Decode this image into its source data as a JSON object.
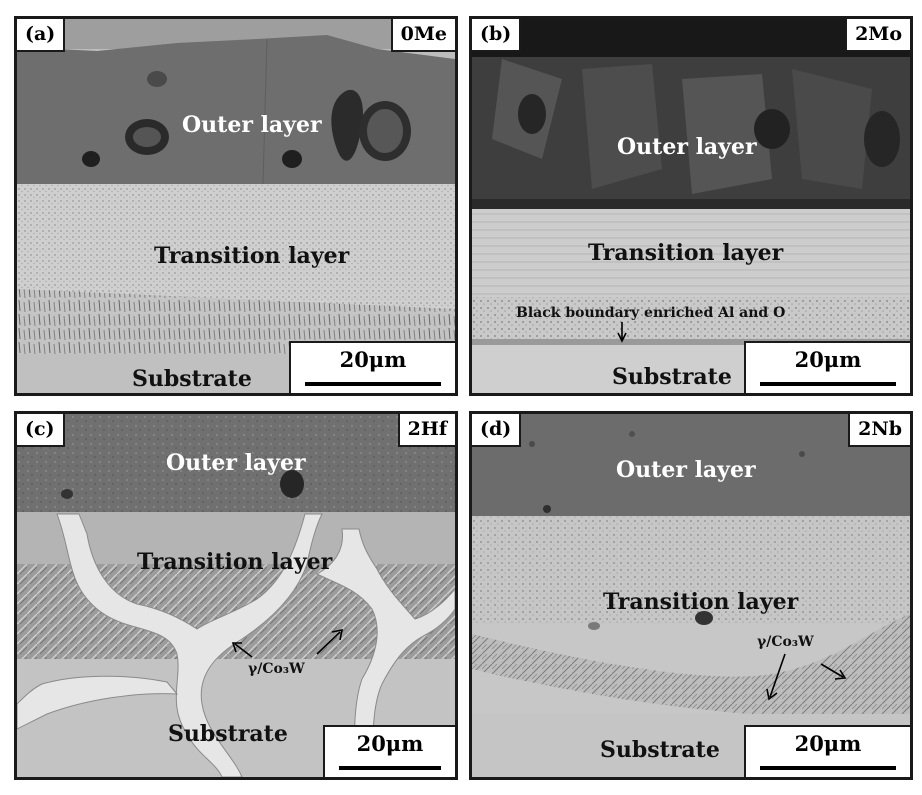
{
  "panels": [
    {
      "tag": "(a)",
      "sample": "0Me",
      "labels": {
        "outer": "Outer layer",
        "transition": "Transition layer",
        "substrate": "Substrate"
      },
      "scale": "20μm"
    },
    {
      "tag": "(b)",
      "sample": "2Mo",
      "labels": {
        "outer": "Outer layer",
        "transition": "Transition layer",
        "boundary": "Black boundary enriched Al and O",
        "substrate": "Substrate"
      },
      "scale": "20μm"
    },
    {
      "tag": "(c)",
      "sample": "2Hf",
      "labels": {
        "outer": "Outer layer",
        "transition": "Transition layer",
        "phase": "γ/Co₃W",
        "substrate": "Substrate"
      },
      "scale": "20μm"
    },
    {
      "tag": "(d)",
      "sample": "2Nb",
      "labels": {
        "outer": "Outer layer",
        "transition": "Transition layer",
        "phase": "γ/Co₃W",
        "substrate": "Substrate"
      },
      "scale": "20μm"
    }
  ],
  "colors": {
    "border": "#1a1a1a",
    "outer_layer_gray": "#6b6b6b",
    "transition_gray": "#c9c9c9",
    "substrate_gray": "#c2c2c2",
    "hf_phase_white": "#e8e8e8"
  }
}
